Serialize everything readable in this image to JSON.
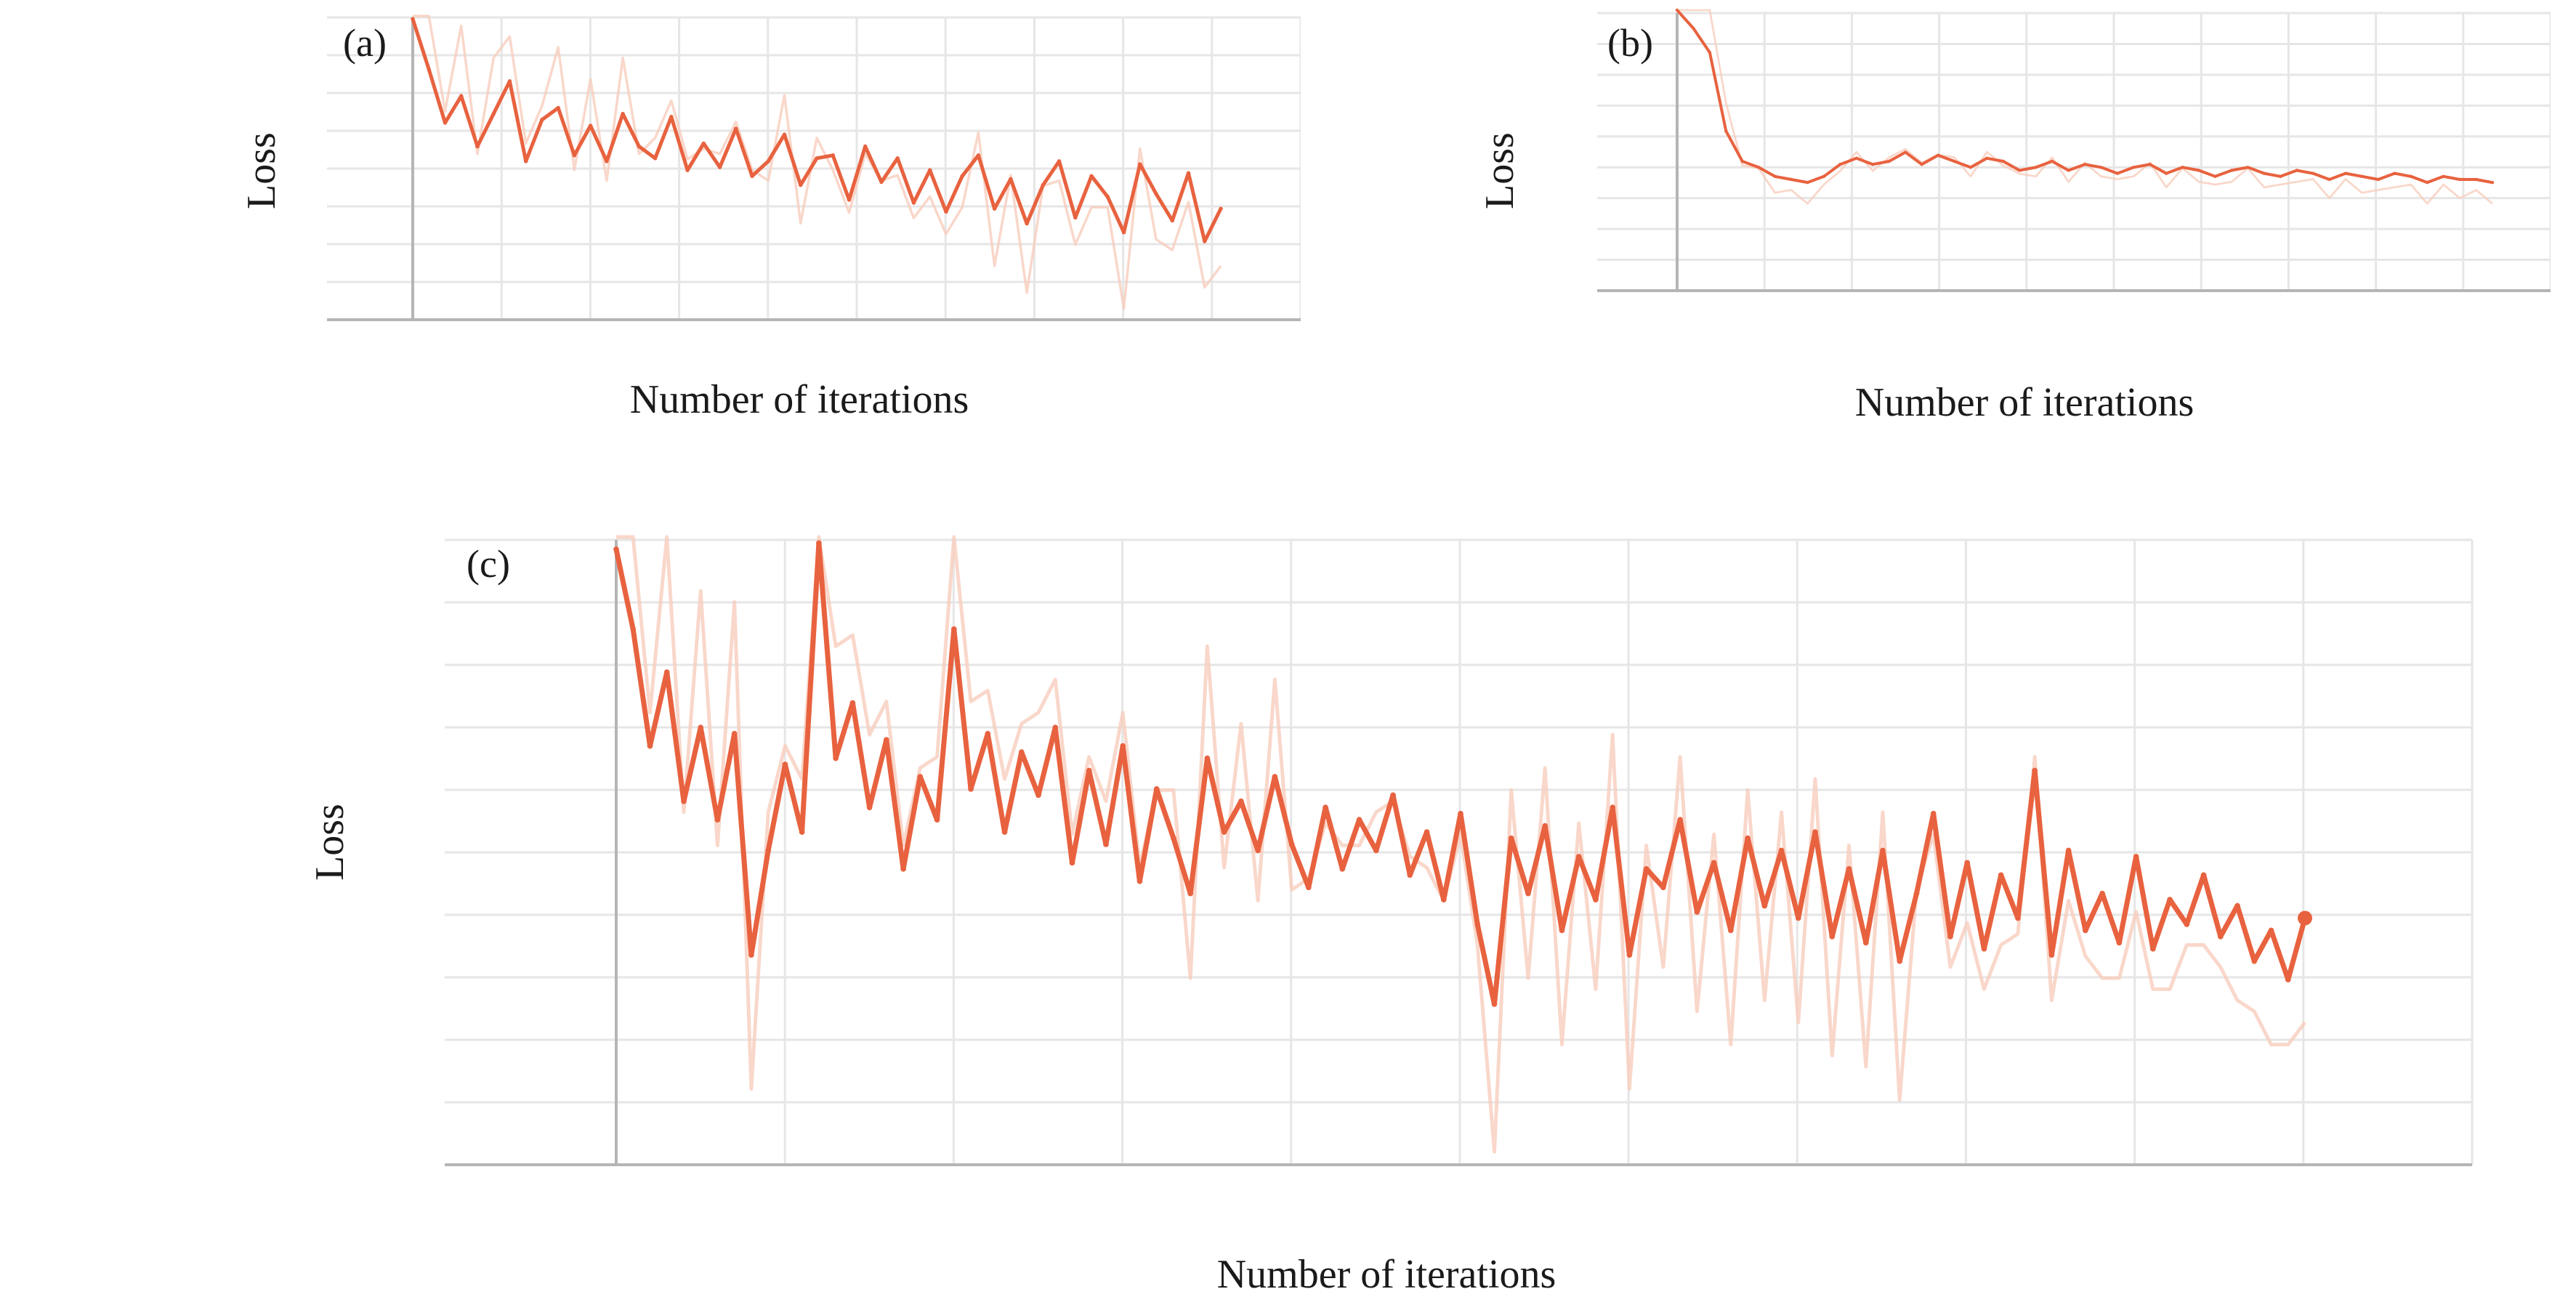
{
  "colors": {
    "series": "#e8623f",
    "series_raw": "#f8cdbd",
    "grid": "#e6e6e6",
    "axis": "#b5b5b5"
  },
  "chart_data": [
    {
      "panel": "(a)",
      "type": "line",
      "xlabel": "Number of iterations",
      "ylabel": "Loss",
      "grid": true,
      "ylim": [
        0,
        10
      ],
      "series": [
        {
          "x": [
            0,
            2,
            4,
            6,
            8,
            10,
            12,
            14,
            16,
            18,
            20,
            22,
            24,
            26,
            28,
            30,
            32,
            34,
            36,
            38,
            40,
            42,
            44,
            46,
            48,
            50,
            52,
            54,
            56,
            58,
            60,
            62,
            64,
            66,
            68,
            70,
            72,
            74,
            76,
            78,
            80,
            82,
            84,
            86,
            88,
            90,
            92,
            94,
            96,
            98,
            100
          ],
          "values": [
            9.9,
            8.2,
            6.4,
            7.3,
            5.6,
            6.7,
            7.8,
            5.1,
            6.5,
            6.9,
            5.3,
            6.3,
            5.1,
            6.7,
            5.6,
            5.2,
            6.6,
            4.8,
            5.7,
            4.9,
            6.2,
            4.6,
            5.1,
            6.0,
            4.3,
            5.2,
            5.3,
            3.8,
            5.6,
            4.4,
            5.2,
            3.7,
            4.8,
            3.4,
            4.6,
            5.3,
            3.5,
            4.5,
            3.0,
            4.3,
            5.1,
            3.2,
            4.6,
            3.9,
            2.7,
            5.0,
            4.0,
            3.1,
            4.7,
            2.4,
            3.5
          ]
        }
      ]
    },
    {
      "panel": "(b)",
      "type": "line",
      "xlabel": "Number of iterations",
      "ylabel": "Loss",
      "grid": true,
      "ylim": [
        0,
        10
      ],
      "series": [
        {
          "x": [
            0,
            2,
            4,
            6,
            8,
            10,
            12,
            14,
            16,
            18,
            20,
            22,
            24,
            26,
            28,
            30,
            32,
            34,
            36,
            38,
            40,
            42,
            44,
            46,
            48,
            50,
            52,
            54,
            56,
            58,
            60,
            62,
            64,
            66,
            68,
            70,
            72,
            74,
            76,
            78,
            80,
            82,
            84,
            86,
            88,
            90,
            92,
            94,
            96,
            98,
            100
          ],
          "values": [
            10.0,
            9.4,
            8.6,
            6.0,
            5.0,
            4.8,
            4.5,
            4.4,
            4.3,
            4.5,
            4.9,
            5.1,
            4.9,
            5.0,
            5.3,
            4.9,
            5.2,
            5.0,
            4.8,
            5.1,
            5.0,
            4.7,
            4.8,
            5.0,
            4.7,
            4.9,
            4.8,
            4.6,
            4.8,
            4.9,
            4.6,
            4.8,
            4.7,
            4.5,
            4.7,
            4.8,
            4.6,
            4.5,
            4.7,
            4.6,
            4.4,
            4.6,
            4.5,
            4.4,
            4.6,
            4.5,
            4.3,
            4.5,
            4.4,
            4.4,
            4.3
          ]
        }
      ]
    },
    {
      "panel": "(c)",
      "type": "line",
      "xlabel": "Number of iterations",
      "ylabel": "Loss",
      "grid": true,
      "ylim": [
        0,
        10
      ],
      "series": [
        {
          "x": [
            0,
            1,
            2,
            3,
            4,
            5,
            6,
            7,
            8,
            9,
            10,
            11,
            12,
            13,
            14,
            15,
            16,
            17,
            18,
            19,
            20,
            21,
            22,
            23,
            24,
            25,
            26,
            27,
            28,
            29,
            30,
            31,
            32,
            33,
            34,
            35,
            36,
            37,
            38,
            39,
            40,
            41,
            42,
            43,
            44,
            45,
            46,
            47,
            48,
            49,
            50,
            51,
            52,
            53,
            54,
            55,
            56,
            57,
            58,
            59,
            60,
            61,
            62,
            63,
            64,
            65,
            66,
            67,
            68,
            69,
            70,
            71,
            72,
            73,
            74,
            75,
            76,
            77,
            78,
            79,
            80,
            81,
            82,
            83,
            84,
            85,
            86,
            87,
            88,
            89,
            90,
            91,
            92,
            93,
            94,
            95,
            96,
            97,
            98,
            99,
            100
          ],
          "values": [
            9.8,
            8.5,
            6.6,
            7.8,
            5.7,
            6.9,
            5.4,
            6.8,
            3.2,
            4.9,
            6.3,
            5.2,
            9.9,
            6.4,
            7.3,
            5.6,
            6.7,
            4.6,
            6.1,
            5.4,
            8.5,
            5.9,
            6.8,
            5.2,
            6.5,
            5.8,
            6.9,
            4.7,
            6.2,
            5.0,
            6.6,
            4.4,
            5.9,
            5.1,
            4.2,
            6.4,
            5.2,
            5.7,
            4.9,
            6.1,
            5.0,
            4.3,
            5.6,
            4.6,
            5.4,
            4.9,
            5.8,
            4.5,
            5.2,
            4.1,
            5.5,
            3.7,
            2.4,
            5.1,
            4.2,
            5.3,
            3.6,
            4.8,
            4.1,
            5.6,
            3.2,
            4.6,
            4.3,
            5.4,
            3.9,
            4.7,
            3.6,
            5.1,
            4.0,
            4.9,
            3.8,
            5.2,
            3.5,
            4.6,
            3.4,
            4.9,
            3.1,
            4.2,
            5.5,
            3.5,
            4.7,
            3.3,
            4.5,
            3.8,
            6.2,
            3.2,
            4.9,
            3.6,
            4.2,
            3.4,
            4.8,
            3.3,
            4.1,
            3.7,
            4.5,
            3.5,
            4.0,
            3.1,
            3.6,
            2.8,
            3.8
          ]
        }
      ]
    }
  ]
}
